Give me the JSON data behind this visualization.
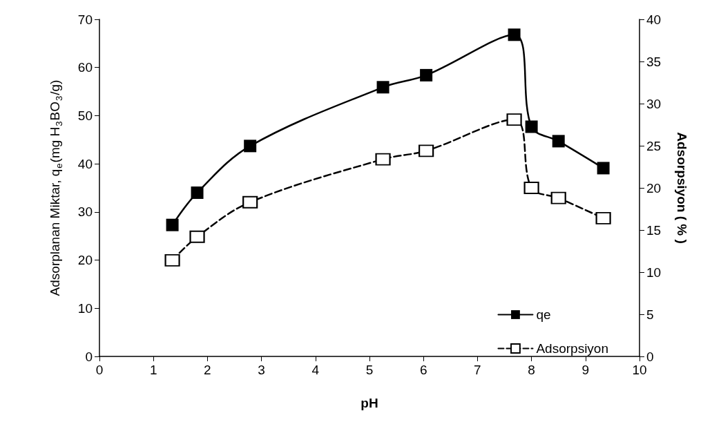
{
  "chart_data": {
    "type": "line",
    "xlabel": "pH",
    "ylabel": "Adsorplanan Miktar, q$_{e}$(mg H$_{3}$BO$_{3}$/g)",
    "y2label": "Adsorpsiyon ( % )",
    "x": [
      1.35,
      1.81,
      2.79,
      5.25,
      6.05,
      7.68,
      8.0,
      8.5,
      9.33
    ],
    "series": [
      {
        "name": "qe",
        "color": "#000000",
        "values": [
          27.3,
          34.0,
          43.7,
          55.9,
          58.4,
          66.8,
          47.7,
          44.7,
          39.1
        ],
        "marker": "square",
        "line_style": "solid"
      },
      {
        "name": "Adsorpsiyon",
        "color": "#000000",
        "values": [
          11.4,
          14.2,
          18.3,
          23.4,
          24.4,
          28.1,
          20.0,
          18.8,
          16.4
        ],
        "axis": "y2",
        "marker": "square",
        "line_style": "dashed"
      }
    ],
    "xlim": [
      0,
      10
    ],
    "xticks": [
      0,
      1,
      2,
      3,
      4,
      5,
      6,
      7,
      8,
      9,
      10
    ],
    "ylim": [
      0,
      70
    ],
    "yticks": [
      0,
      10,
      20,
      30,
      40,
      50,
      60,
      70
    ],
    "y2lim": [
      0,
      40
    ],
    "y2ticks": [
      0,
      5,
      10,
      15,
      20,
      25,
      30,
      35,
      40
    ],
    "grid": false,
    "legend": "bottom right"
  }
}
